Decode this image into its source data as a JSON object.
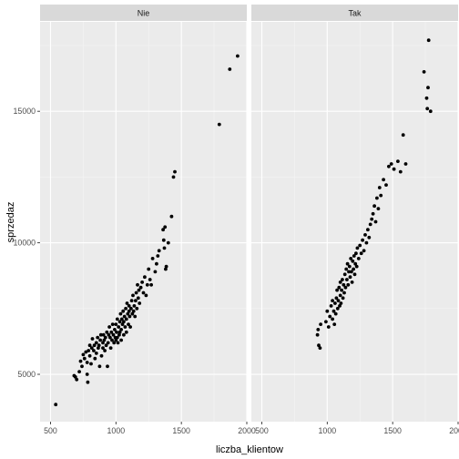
{
  "chart_data": {
    "type": "scatter",
    "xlabel": "liczba_klientow",
    "ylabel": "sprzedaz",
    "xlim": [
      420,
      2000
    ],
    "ylim": [
      3200,
      18400
    ],
    "x_ticks": [
      500,
      1000,
      1500,
      2000
    ],
    "x_tick_labels": [
      "500",
      "1000",
      "1500",
      "2000"
    ],
    "y_ticks": [
      5000,
      10000,
      15000
    ],
    "y_tick_labels": [
      "5000",
      "10000",
      "15000"
    ],
    "grid": true,
    "facets": [
      {
        "label": "Nie",
        "points": [
          [
            540,
            3850
          ],
          [
            680,
            4950
          ],
          [
            690,
            4900
          ],
          [
            700,
            4800
          ],
          [
            720,
            5100
          ],
          [
            730,
            5500
          ],
          [
            740,
            5300
          ],
          [
            750,
            5750
          ],
          [
            760,
            5600
          ],
          [
            770,
            5850
          ],
          [
            780,
            5450
          ],
          [
            780,
            5000
          ],
          [
            785,
            4700
          ],
          [
            790,
            5900
          ],
          [
            800,
            6100
          ],
          [
            800,
            5700
          ],
          [
            810,
            5400
          ],
          [
            815,
            6000
          ],
          [
            820,
            6350
          ],
          [
            830,
            5900
          ],
          [
            835,
            6100
          ],
          [
            840,
            5600
          ],
          [
            850,
            6200
          ],
          [
            850,
            5800
          ],
          [
            860,
            6400
          ],
          [
            865,
            6000
          ],
          [
            870,
            6100
          ],
          [
            875,
            5300
          ],
          [
            880,
            6300
          ],
          [
            885,
            6500
          ],
          [
            890,
            5700
          ],
          [
            900,
            6000
          ],
          [
            900,
            6200
          ],
          [
            905,
            6500
          ],
          [
            910,
            6300
          ],
          [
            915,
            5900
          ],
          [
            920,
            6400
          ],
          [
            925,
            6100
          ],
          [
            930,
            6600
          ],
          [
            935,
            5300
          ],
          [
            940,
            6200
          ],
          [
            945,
            6500
          ],
          [
            950,
            6800
          ],
          [
            955,
            6400
          ],
          [
            960,
            6000
          ],
          [
            965,
            6600
          ],
          [
            970,
            6300
          ],
          [
            975,
            6900
          ],
          [
            980,
            6500
          ],
          [
            985,
            6200
          ],
          [
            990,
            6700
          ],
          [
            995,
            6400
          ],
          [
            1000,
            6900
          ],
          [
            1000,
            6300
          ],
          [
            1005,
            6600
          ],
          [
            1010,
            6400
          ],
          [
            1010,
            7100
          ],
          [
            1015,
            6200
          ],
          [
            1020,
            6800
          ],
          [
            1025,
            6500
          ],
          [
            1030,
            7000
          ],
          [
            1030,
            6600
          ],
          [
            1035,
            7300
          ],
          [
            1040,
            6700
          ],
          [
            1040,
            6300
          ],
          [
            1045,
            7100
          ],
          [
            1050,
            6900
          ],
          [
            1055,
            7400
          ],
          [
            1060,
            7000
          ],
          [
            1060,
            6500
          ],
          [
            1065,
            7200
          ],
          [
            1070,
            6800
          ],
          [
            1075,
            7500
          ],
          [
            1080,
            7100
          ],
          [
            1080,
            6600
          ],
          [
            1085,
            7700
          ],
          [
            1090,
            7300
          ],
          [
            1095,
            6900
          ],
          [
            1100,
            7400
          ],
          [
            1100,
            7600
          ],
          [
            1105,
            7200
          ],
          [
            1110,
            6800
          ],
          [
            1115,
            7500
          ],
          [
            1120,
            7800
          ],
          [
            1125,
            7300
          ],
          [
            1130,
            8000
          ],
          [
            1135,
            7400
          ],
          [
            1140,
            7600
          ],
          [
            1145,
            7200
          ],
          [
            1150,
            7800
          ],
          [
            1155,
            8100
          ],
          [
            1160,
            7500
          ],
          [
            1165,
            8400
          ],
          [
            1170,
            7900
          ],
          [
            1175,
            8200
          ],
          [
            1180,
            7700
          ],
          [
            1190,
            8300
          ],
          [
            1200,
            8500
          ],
          [
            1210,
            8100
          ],
          [
            1220,
            8700
          ],
          [
            1230,
            8000
          ],
          [
            1240,
            8400
          ],
          [
            1250,
            9000
          ],
          [
            1260,
            8600
          ],
          [
            1270,
            8400
          ],
          [
            1280,
            9400
          ],
          [
            1300,
            8900
          ],
          [
            1310,
            9200
          ],
          [
            1320,
            9500
          ],
          [
            1330,
            9700
          ],
          [
            1360,
            10500
          ],
          [
            1365,
            10100
          ],
          [
            1370,
            9800
          ],
          [
            1375,
            10600
          ],
          [
            1380,
            9000
          ],
          [
            1385,
            9100
          ],
          [
            1400,
            10000
          ],
          [
            1425,
            11000
          ],
          [
            1440,
            12500
          ],
          [
            1450,
            12700
          ],
          [
            1790,
            14500
          ],
          [
            1870,
            16600
          ],
          [
            1930,
            17100
          ]
        ]
      },
      {
        "label": "Tak",
        "points": [
          [
            925,
            6500
          ],
          [
            930,
            6700
          ],
          [
            935,
            6100
          ],
          [
            945,
            6000
          ],
          [
            950,
            6900
          ],
          [
            990,
            7000
          ],
          [
            1000,
            7400
          ],
          [
            1010,
            6800
          ],
          [
            1020,
            7200
          ],
          [
            1030,
            7600
          ],
          [
            1040,
            7100
          ],
          [
            1040,
            7800
          ],
          [
            1050,
            7400
          ],
          [
            1055,
            6900
          ],
          [
            1060,
            7700
          ],
          [
            1065,
            7300
          ],
          [
            1070,
            7900
          ],
          [
            1075,
            8200
          ],
          [
            1080,
            7500
          ],
          [
            1085,
            7800
          ],
          [
            1090,
            8300
          ],
          [
            1095,
            7600
          ],
          [
            1100,
            8000
          ],
          [
            1100,
            8500
          ],
          [
            1105,
            7700
          ],
          [
            1110,
            8200
          ],
          [
            1115,
            8600
          ],
          [
            1120,
            7900
          ],
          [
            1125,
            8400
          ],
          [
            1130,
            8100
          ],
          [
            1135,
            8800
          ],
          [
            1140,
            8300
          ],
          [
            1145,
            9000
          ],
          [
            1150,
            8600
          ],
          [
            1155,
            9200
          ],
          [
            1160,
            8400
          ],
          [
            1165,
            8900
          ],
          [
            1170,
            9100
          ],
          [
            1175,
            8700
          ],
          [
            1180,
            9400
          ],
          [
            1185,
            8900
          ],
          [
            1190,
            8500
          ],
          [
            1195,
            9300
          ],
          [
            1200,
            9000
          ],
          [
            1205,
            9500
          ],
          [
            1210,
            8800
          ],
          [
            1215,
            9200
          ],
          [
            1220,
            9600
          ],
          [
            1225,
            9100
          ],
          [
            1230,
            9800
          ],
          [
            1240,
            9400
          ],
          [
            1250,
            9900
          ],
          [
            1260,
            9600
          ],
          [
            1270,
            10100
          ],
          [
            1280,
            9700
          ],
          [
            1290,
            10300
          ],
          [
            1300,
            10000
          ],
          [
            1310,
            10500
          ],
          [
            1320,
            10200
          ],
          [
            1330,
            10700
          ],
          [
            1340,
            10900
          ],
          [
            1350,
            11100
          ],
          [
            1360,
            11400
          ],
          [
            1370,
            10800
          ],
          [
            1380,
            11700
          ],
          [
            1390,
            11300
          ],
          [
            1400,
            12100
          ],
          [
            1410,
            11800
          ],
          [
            1430,
            12400
          ],
          [
            1450,
            12200
          ],
          [
            1470,
            12900
          ],
          [
            1490,
            13000
          ],
          [
            1510,
            12800
          ],
          [
            1540,
            13100
          ],
          [
            1560,
            12700
          ],
          [
            1580,
            14100
          ],
          [
            1600,
            13000
          ],
          [
            1740,
            16500
          ],
          [
            1760,
            15500
          ],
          [
            1765,
            15100
          ],
          [
            1770,
            15900
          ],
          [
            1775,
            17700
          ],
          [
            1790,
            15000
          ]
        ]
      }
    ]
  }
}
